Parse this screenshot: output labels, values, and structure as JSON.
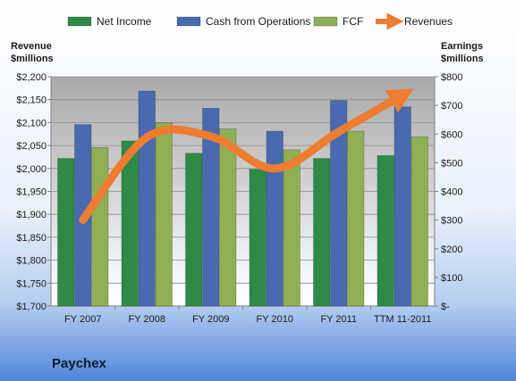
{
  "chart_data": {
    "type": "bar",
    "company": "Paychex",
    "categories": [
      "FY 2007",
      "FY 2008",
      "FY 2009",
      "FY 2010",
      "FY 2011",
      "TTM 11-2011"
    ],
    "left_axis": {
      "title_line1": "Revenue",
      "title_line2": "$millions",
      "range": [
        1700,
        2200
      ],
      "ticks": [
        1700,
        1750,
        1800,
        1850,
        1900,
        1950,
        2000,
        2050,
        2100,
        2150,
        2200
      ],
      "tick_labels": [
        "$1,700",
        "$1,750",
        "$1,800",
        "$1,850",
        "$1,900",
        "$1,950",
        "$2,000",
        "$2,050",
        "$2,100",
        "$2,150",
        "$2,200"
      ]
    },
    "right_axis": {
      "title_line1": "Earnings",
      "title_line2": "$millions",
      "range": [
        0,
        800
      ],
      "ticks": [
        0,
        100,
        200,
        300,
        400,
        500,
        600,
        700,
        800
      ],
      "tick_labels": [
        "$-",
        "$100",
        "$200",
        "$300",
        "$400",
        "$500",
        "$600",
        "$700",
        "$800"
      ]
    },
    "series": [
      {
        "name": "Net Income",
        "axis": "right",
        "color": "#2e8b47",
        "values": [
          515,
          576,
          533,
          477,
          515,
          525
        ]
      },
      {
        "name": "Cash from Operations",
        "axis": "right",
        "color": "#4a6ab0",
        "values": [
          633,
          750,
          690,
          610,
          717,
          695
        ]
      },
      {
        "name": "FCF",
        "axis": "right",
        "color": "#8faf55",
        "values": [
          553,
          640,
          618,
          545,
          610,
          590
        ]
      }
    ],
    "line_series": {
      "name": "Revenues",
      "axis": "left",
      "color": "#ed7d31",
      "values": [
        1888,
        2068,
        2070,
        2000,
        2080,
        2160
      ]
    },
    "legend_position": "top",
    "gridlines": true
  }
}
